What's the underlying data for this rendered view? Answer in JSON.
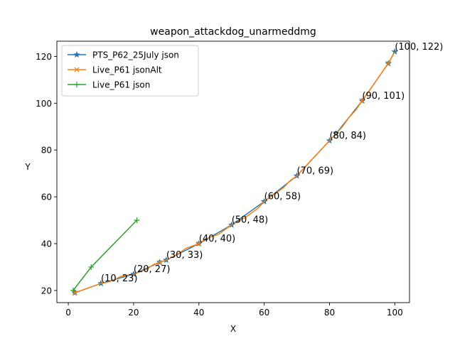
{
  "chart_data": {
    "type": "line",
    "title": "weapon_attackdog_unarmeddmg",
    "xlabel": "X",
    "ylabel": "Y",
    "xlim": [
      -3.5,
      104.5
    ],
    "ylim": [
      14.8,
      126.5
    ],
    "xticks": [
      0,
      20,
      40,
      60,
      80,
      100
    ],
    "yticks": [
      20,
      40,
      60,
      80,
      100,
      120
    ],
    "legend_position": "top-left",
    "grid": false,
    "series": [
      {
        "name": "PTS_P62_25July json",
        "color": "#1f77b4",
        "marker": "star",
        "x": [
          2,
          10,
          20,
          28,
          30,
          40,
          50,
          60,
          70,
          80,
          82,
          90,
          98,
          100
        ],
        "y": [
          19,
          23,
          27,
          32,
          33,
          40,
          48,
          58,
          69,
          84,
          87,
          101,
          117,
          122
        ]
      },
      {
        "name": "Live_P61 jsonAlt",
        "color": "#ff7f0e",
        "marker": "x",
        "x": [
          2,
          4,
          6,
          8,
          10,
          12,
          14,
          16,
          18,
          20,
          22,
          24,
          26,
          28,
          30,
          32,
          34,
          36,
          38,
          40,
          42,
          44,
          46,
          48,
          50,
          52,
          54,
          56,
          58,
          60,
          62,
          64,
          66,
          68,
          70,
          72,
          74,
          76,
          78,
          80,
          82,
          84,
          86,
          88,
          90,
          92,
          94,
          96,
          98,
          100
        ],
        "y": [
          19,
          20,
          21,
          22,
          23,
          23.5,
          24.5,
          26,
          26.5,
          27,
          28,
          29,
          31,
          32,
          33,
          34.5,
          36,
          38,
          39,
          40,
          42,
          43,
          44,
          46,
          48,
          49.5,
          51,
          53,
          55,
          58,
          60,
          62,
          64,
          67,
          69,
          72,
          75,
          78,
          81,
          84,
          87,
          90,
          94,
          97,
          101,
          105,
          109,
          113,
          117,
          122
        ],
        "marked_x": [
          2,
          28,
          40,
          82,
          90,
          98
        ]
      },
      {
        "name": "Live_P61 json",
        "color": "#2ca02c",
        "marker": "plus",
        "x": [
          1.5,
          7,
          21
        ],
        "y": [
          20,
          30,
          50
        ]
      }
    ],
    "annotations": [
      {
        "x": 10,
        "y": 23,
        "text": "(10, 23)"
      },
      {
        "x": 20,
        "y": 27,
        "text": "(20, 27)"
      },
      {
        "x": 30,
        "y": 33,
        "text": "(30, 33)"
      },
      {
        "x": 40,
        "y": 40,
        "text": "(40, 40)"
      },
      {
        "x": 50,
        "y": 48,
        "text": "(50, 48)"
      },
      {
        "x": 60,
        "y": 58,
        "text": "(60, 58)"
      },
      {
        "x": 70,
        "y": 69,
        "text": "(70, 69)"
      },
      {
        "x": 80,
        "y": 84,
        "text": "(80, 84)"
      },
      {
        "x": 90,
        "y": 101,
        "text": "(90, 101)"
      },
      {
        "x": 100,
        "y": 122,
        "text": "(100, 122)"
      }
    ]
  }
}
